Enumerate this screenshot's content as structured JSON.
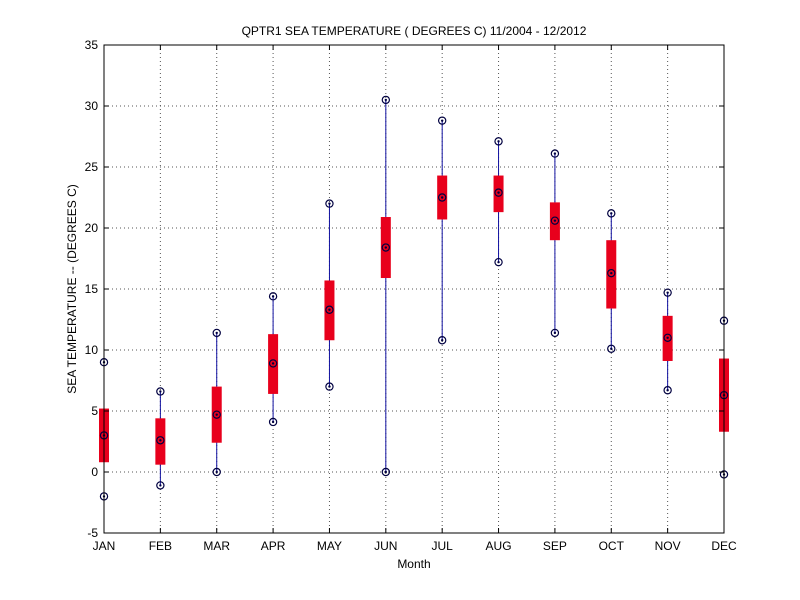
{
  "chart_data": {
    "type": "box",
    "title": "QPTR1  SEA TEMPERATURE ( DEGREES C) 11/2004 - 12/2012",
    "xlabel": "Month",
    "ylabel": "SEA TEMPERATURE -- (DEGREES C)",
    "ylim": [
      -5,
      35
    ],
    "yticks": [
      -5,
      0,
      5,
      10,
      15,
      20,
      25,
      30,
      35
    ],
    "grid": true,
    "categories": [
      "JAN",
      "FEB",
      "MAR",
      "APR",
      "MAY",
      "JUN",
      "JUL",
      "AUG",
      "SEP",
      "OCT",
      "NOV",
      "DEC"
    ],
    "boxes": [
      {
        "min": -2.0,
        "q1": 0.8,
        "median": 3.0,
        "q3": 5.2,
        "max": 9.0
      },
      {
        "min": -1.1,
        "q1": 0.6,
        "median": 2.6,
        "q3": 4.4,
        "max": 6.6
      },
      {
        "min": 0.0,
        "q1": 2.4,
        "median": 4.7,
        "q3": 7.0,
        "max": 11.4
      },
      {
        "min": 4.1,
        "q1": 6.4,
        "median": 8.9,
        "q3": 11.3,
        "max": 14.4
      },
      {
        "min": 7.0,
        "q1": 10.8,
        "median": 13.3,
        "q3": 15.7,
        "max": 22.0
      },
      {
        "min": 0.0,
        "q1": 15.9,
        "median": 18.4,
        "q3": 20.9,
        "max": 30.5
      },
      {
        "min": 10.8,
        "q1": 20.7,
        "median": 22.5,
        "q3": 24.3,
        "max": 28.8
      },
      {
        "min": 17.2,
        "q1": 21.3,
        "median": 22.9,
        "q3": 24.3,
        "max": 27.1
      },
      {
        "min": 11.4,
        "q1": 19.0,
        "median": 20.6,
        "q3": 22.1,
        "max": 26.1
      },
      {
        "min": 10.1,
        "q1": 13.4,
        "median": 16.3,
        "q3": 19.0,
        "max": 21.2
      },
      {
        "min": 6.7,
        "q1": 9.1,
        "median": 11.0,
        "q3": 12.8,
        "max": 14.7
      },
      {
        "min": -0.2,
        "q1": 3.3,
        "median": 6.3,
        "q3": 9.3,
        "max": 12.4
      }
    ],
    "colors": {
      "box": "#e8001c",
      "whisker": "#1010a0",
      "marker": "#000040",
      "grid": "#555555"
    }
  }
}
